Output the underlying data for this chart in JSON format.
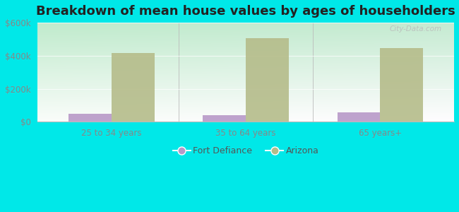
{
  "title": "Breakdown of mean house values by ages of householders",
  "categories": [
    "25 to 34 years",
    "35 to 64 years",
    "65 years+"
  ],
  "fort_defiance_values": [
    50000,
    38000,
    55000
  ],
  "arizona_values": [
    415000,
    505000,
    445000
  ],
  "ylim": [
    0,
    600000
  ],
  "ytick_labels": [
    "$0",
    "$200k",
    "$400k",
    "$600k"
  ],
  "ytick_values": [
    0,
    200000,
    400000,
    600000
  ],
  "fort_defiance_color": "#b899c8",
  "arizona_color": "#b5bc8a",
  "background_color": "#00e8e8",
  "title_fontsize": 13,
  "bar_width": 0.32,
  "legend_labels": [
    "Fort Defiance",
    "Arizona"
  ],
  "watermark": "City-Data.com",
  "tick_color": "#888888",
  "grid_color": "#dddddd"
}
